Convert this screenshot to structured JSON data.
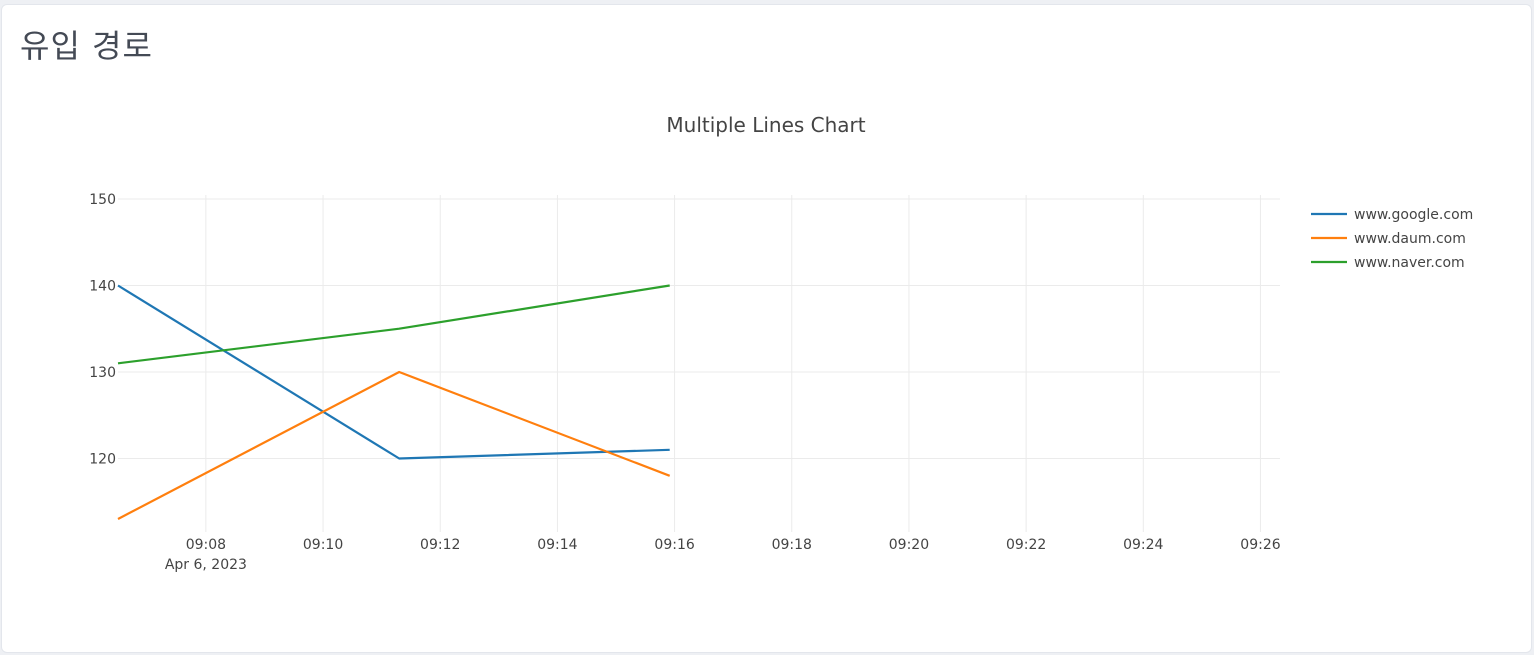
{
  "card": {
    "title": "유입 경로"
  },
  "chart_data": {
    "type": "line",
    "title": "Multiple Lines Chart",
    "xlabel": "",
    "ylabel": "",
    "x_axis": "time",
    "date_label": "Apr 6, 2023",
    "x_ticks": [
      "09:08",
      "09:10",
      "09:12",
      "09:14",
      "09:16",
      "09:18",
      "09:20",
      "09:22",
      "09:24",
      "09:26"
    ],
    "xlim": [
      "09:06:30",
      "09:26:20"
    ],
    "y_ticks": [
      120,
      130,
      140,
      150
    ],
    "ylim": [
      111.5,
      150
    ],
    "grid": true,
    "legend_position": "top-right",
    "series": [
      {
        "name": "www.google.com",
        "color": "#1f77b4",
        "x": [
          "09:06:30",
          "09:11:18",
          "09:15:55"
        ],
        "y": [
          140,
          120,
          121
        ]
      },
      {
        "name": "www.daum.com",
        "color": "#ff7f0e",
        "x": [
          "09:06:30",
          "09:11:18",
          "09:15:55"
        ],
        "y": [
          113,
          130,
          118
        ]
      },
      {
        "name": "www.naver.com",
        "color": "#2ca02c",
        "x": [
          "09:06:30",
          "09:11:18",
          "09:15:55"
        ],
        "y": [
          131,
          135,
          140
        ]
      }
    ]
  }
}
